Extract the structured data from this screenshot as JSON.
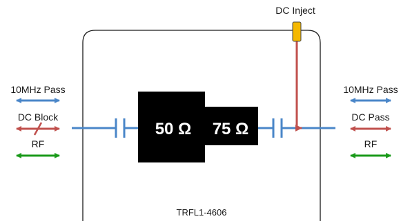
{
  "diagram": {
    "inject_label": "DC Inject",
    "box_label": "TRFL1-4606",
    "impedance_left": "50 Ω",
    "impedance_right": "75 Ω",
    "left_legend": {
      "pass_label": "10MHz Pass",
      "dc_label": "DC Block",
      "rf_label": "RF"
    },
    "right_legend": {
      "pass_label": "10MHz Pass",
      "dc_label": "DC Pass",
      "rf_label": "RF"
    },
    "colors": {
      "pass": "#4a86c8",
      "dc": "#c0504d",
      "rf": "#1a9a1a",
      "line": "#4a86c8",
      "inject_fill": "#f5b800",
      "block": "#000000"
    },
    "icons": {
      "capacitor": "capacitor-symbol",
      "arrow": "double-arrow"
    }
  }
}
